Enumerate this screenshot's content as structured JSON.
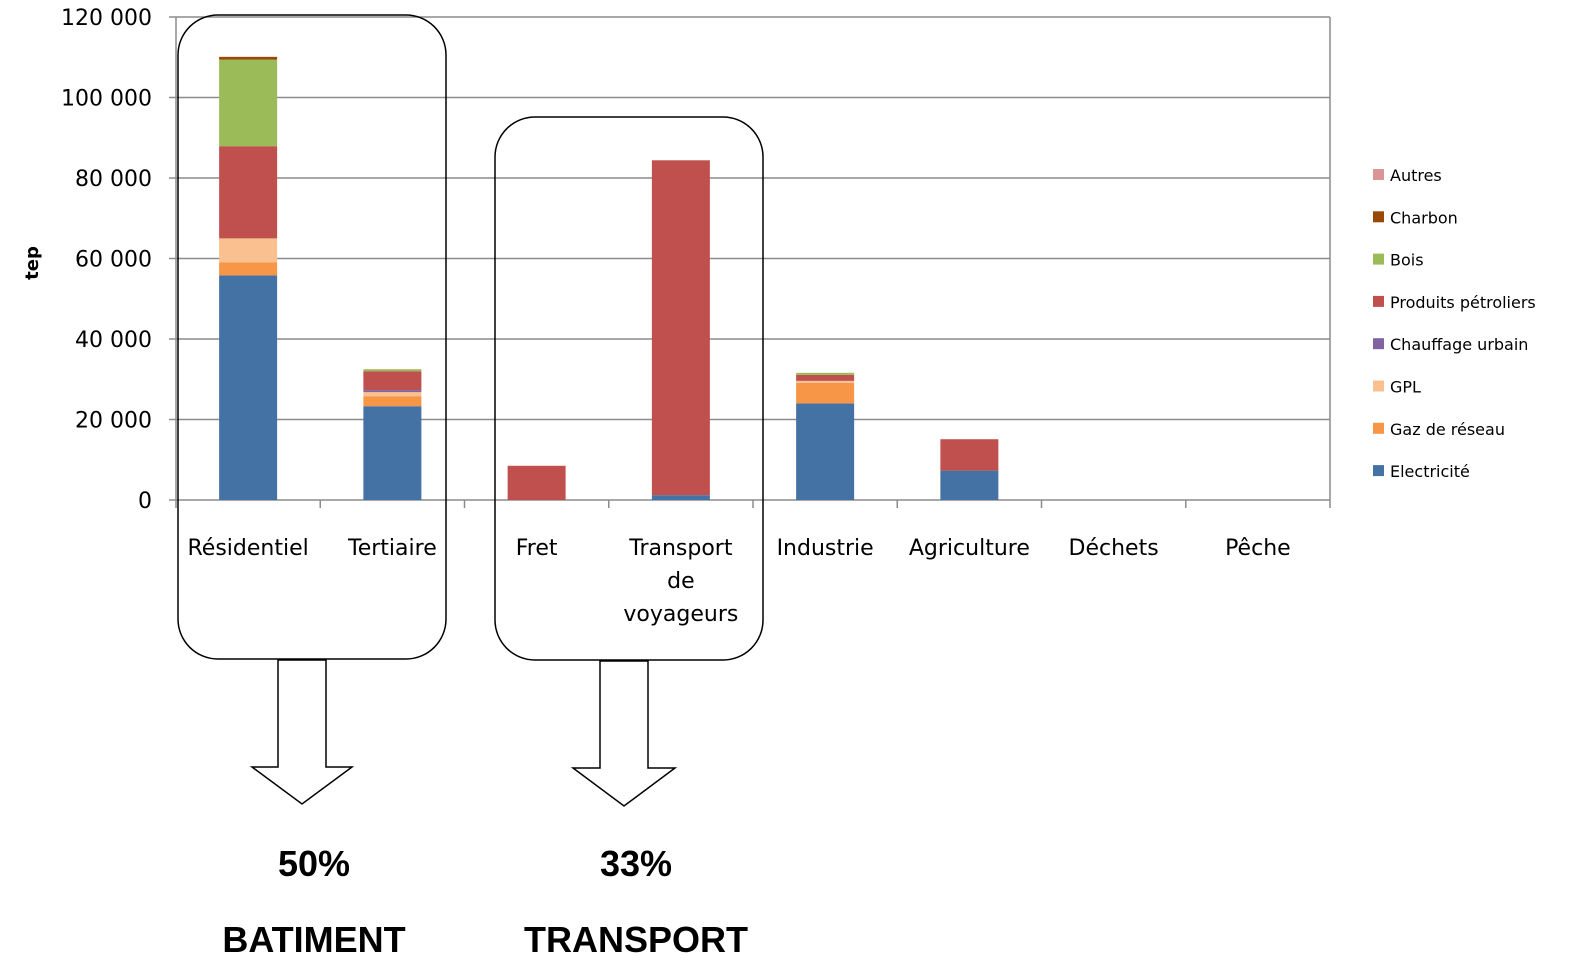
{
  "chart_data": {
    "type": "bar",
    "stacked": true,
    "ylabel": "tep",
    "xlabel": "",
    "ylim": [
      0,
      120000
    ],
    "yticks": [
      "0",
      "20 000",
      "40 000",
      "60 000",
      "80 000",
      "100 000",
      "120 000"
    ],
    "yticks_values": [
      0,
      20000,
      40000,
      60000,
      80000,
      100000,
      120000
    ],
    "grid": true,
    "legend_position": "right",
    "categories": [
      [
        "Résidentiel"
      ],
      [
        "Tertiaire"
      ],
      [
        "Fret"
      ],
      [
        "Transport",
        "de",
        "voyageurs"
      ],
      [
        "Industrie"
      ],
      [
        "Agriculture"
      ],
      [
        "Déchets"
      ],
      [
        "Pêche"
      ]
    ],
    "series": [
      {
        "name": "Electricité",
        "color": "#4472a4",
        "values": [
          55800,
          23300,
          0,
          1200,
          24000,
          7300,
          0,
          0
        ]
      },
      {
        "name": "Gaz de réseau",
        "color": "#f79646",
        "values": [
          3200,
          2500,
          0,
          0,
          5100,
          0,
          0,
          0
        ]
      },
      {
        "name": "GPL",
        "color": "#fac090",
        "values": [
          6000,
          1000,
          0,
          0,
          500,
          0,
          0,
          0
        ]
      },
      {
        "name": "Chauffage urbain",
        "color": "#8064a2",
        "values": [
          0,
          500,
          0,
          0,
          0,
          0,
          0,
          0
        ]
      },
      {
        "name": "Produits pétroliers",
        "color": "#c0504d",
        "values": [
          22900,
          4700,
          8500,
          83200,
          1500,
          7800,
          0,
          0
        ]
      },
      {
        "name": "Bois",
        "color": "#9bbb59",
        "values": [
          21500,
          500,
          0,
          0,
          500,
          0,
          0,
          0
        ]
      },
      {
        "name": "Charbon",
        "color": "#984807",
        "values": [
          700,
          0,
          0,
          0,
          0,
          0,
          0,
          0
        ]
      },
      {
        "name": "Autres",
        "color": "#d99694",
        "values": [
          0,
          0,
          0,
          0,
          0,
          0,
          0,
          0
        ]
      }
    ],
    "annotations": [
      {
        "percent": "50%",
        "label": "BATIMENT",
        "categories": [
          "Résidentiel",
          "Tertiaire"
        ]
      },
      {
        "percent": "33%",
        "label": "TRANSPORT",
        "categories": [
          "Fret",
          "Transport de voyageurs"
        ]
      }
    ]
  }
}
